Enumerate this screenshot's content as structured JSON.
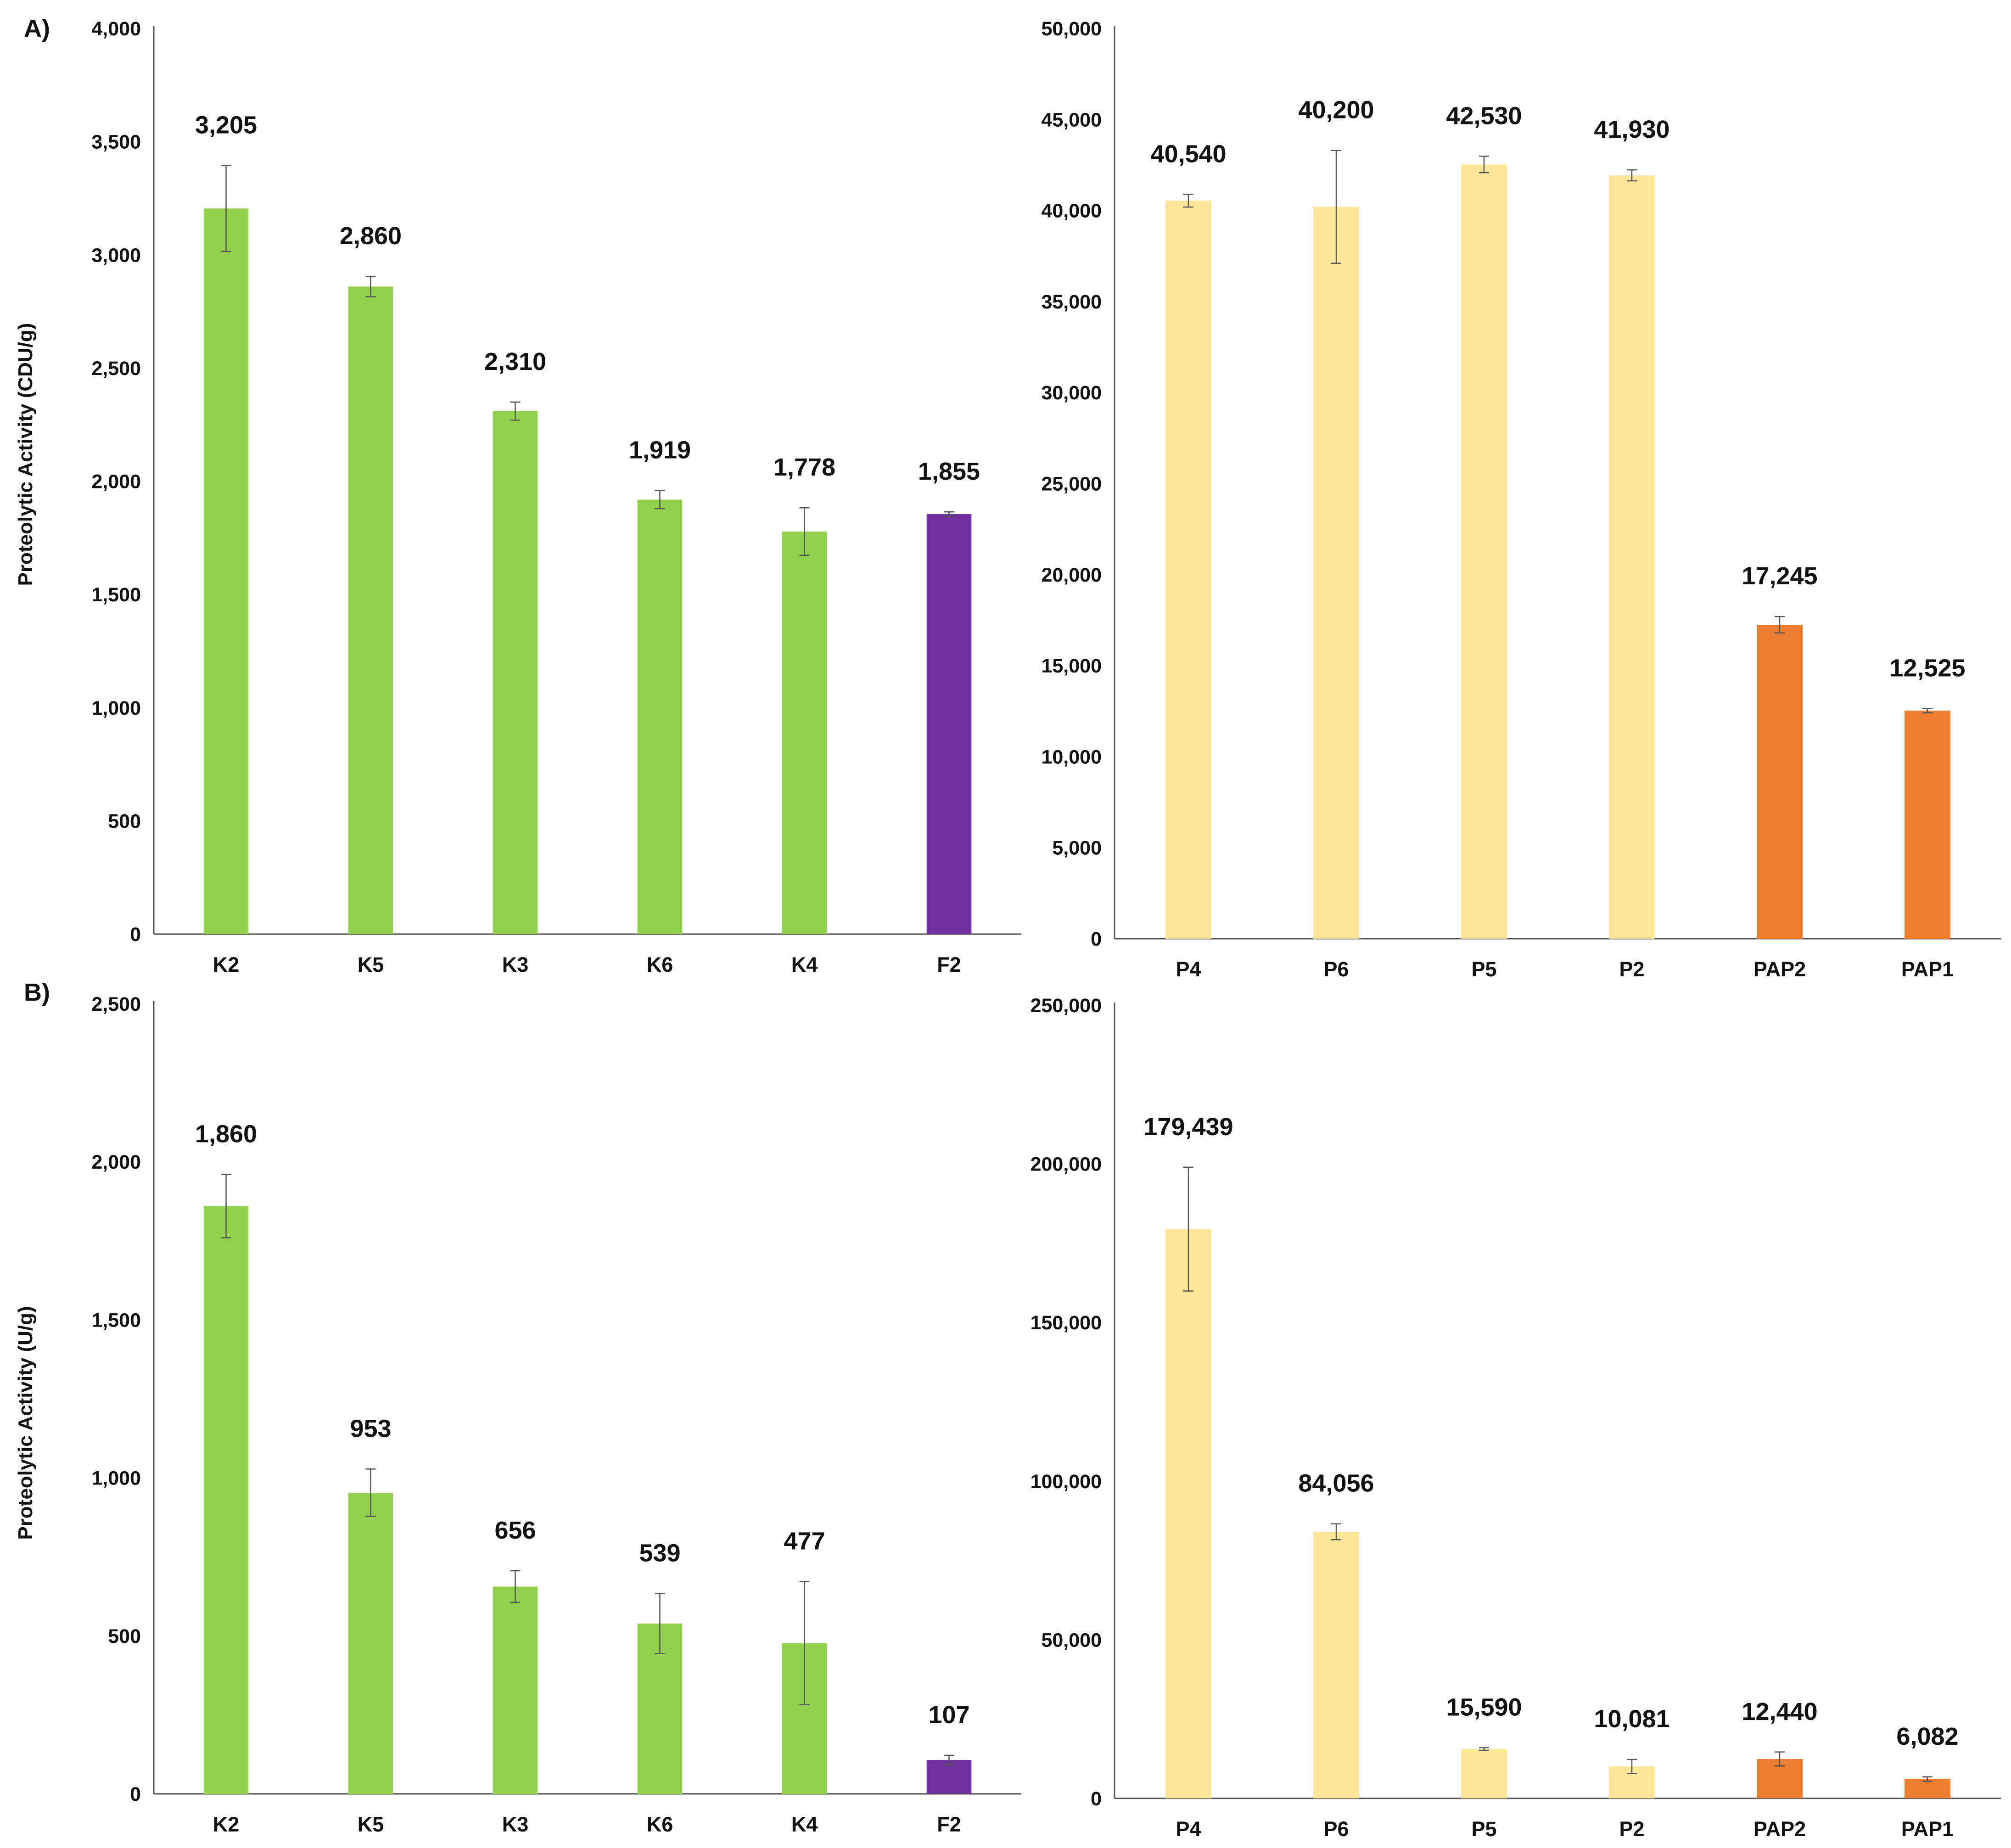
{
  "panels": [
    {
      "letter": "A)",
      "y_axis_title": "Proteolytic Activity (CDU/g)"
    },
    {
      "letter": "B)",
      "y_axis_title": "Proteolytic Activity (U/g)"
    }
  ],
  "chart_data": [
    {
      "type": "bar",
      "panel": "A",
      "position": "top-left",
      "ylabel": "Proteolytic Activity (CDU/g)",
      "ylim": [
        0,
        4000
      ],
      "yticks": [
        0,
        500,
        1000,
        1500,
        2000,
        2500,
        3000,
        3500,
        4000
      ],
      "ytick_labels": [
        "0",
        "500",
        "1,000",
        "1,500",
        "2,000",
        "2,500",
        "3,000",
        "3,500",
        "4,000"
      ],
      "categories": [
        "K2",
        "K5",
        "K3",
        "K6",
        "K4",
        "F2"
      ],
      "values": [
        3205,
        2860,
        2310,
        1919,
        1778,
        1855
      ],
      "value_labels": [
        "3,205",
        "2,860",
        "2,310",
        "1,919",
        "1,778",
        "1,855"
      ],
      "errors": [
        190,
        45,
        40,
        40,
        105,
        10
      ],
      "bar_colors": [
        "#92d050",
        "#92d050",
        "#92d050",
        "#92d050",
        "#92d050",
        "#7030a0"
      ]
    },
    {
      "type": "bar",
      "panel": "A",
      "position": "top-right",
      "ylabel": "",
      "ylim": [
        0,
        50000
      ],
      "yticks": [
        0,
        5000,
        10000,
        15000,
        20000,
        25000,
        30000,
        35000,
        40000,
        45000,
        50000
      ],
      "ytick_labels": [
        "0",
        "5,000",
        "10,000",
        "15,000",
        "20,000",
        "25,000",
        "30,000",
        "35,000",
        "40,000",
        "45,000",
        "50,000"
      ],
      "categories": [
        "P4",
        "P6",
        "P5",
        "P2",
        "PAP2",
        "PAP1"
      ],
      "values": [
        40540,
        40200,
        42530,
        41930,
        17245,
        12525
      ],
      "value_labels": [
        "40,540",
        "40,200",
        "42,530",
        "41,930",
        "17,245",
        "12,525"
      ],
      "errors": [
        350,
        3100,
        450,
        300,
        450,
        120
      ],
      "bar_colors": [
        "#ffe699",
        "#ffe699",
        "#ffe699",
        "#ffe699",
        "#ed7d31",
        "#ed7d31"
      ]
    },
    {
      "type": "bar",
      "panel": "B",
      "position": "bottom-left",
      "ylabel": "Proteolytic Activity (U/g)",
      "ylim": [
        0,
        2500
      ],
      "yticks": [
        0,
        500,
        1000,
        1500,
        2000,
        2500
      ],
      "ytick_labels": [
        "0",
        "500",
        "1,000",
        "1,500",
        "2,000",
        "2,500"
      ],
      "categories": [
        "K2",
        "K5",
        "K3",
        "K6",
        "K4",
        "F2"
      ],
      "values": [
        1860,
        953,
        656,
        539,
        477,
        107
      ],
      "value_labels": [
        "1,860",
        "953",
        "656",
        "539",
        "477",
        "107"
      ],
      "errors": [
        100,
        75,
        50,
        95,
        195,
        15
      ],
      "bar_colors": [
        "#92d050",
        "#92d050",
        "#92d050",
        "#92d050",
        "#92d050",
        "#7030a0"
      ]
    },
    {
      "type": "bar",
      "panel": "B",
      "position": "bottom-right",
      "ylabel": "",
      "ylim": [
        0,
        250000
      ],
      "yticks": [
        0,
        50000,
        100000,
        150000,
        200000,
        250000
      ],
      "ytick_labels": [
        "0",
        "50,000",
        "100,000",
        "150,000",
        "200,000",
        "250,000"
      ],
      "categories": [
        "P4",
        "P6",
        "P5",
        "P2",
        "PAP2",
        "PAP1"
      ],
      "values": [
        179439,
        84056,
        15590,
        10081,
        12440,
        6082
      ],
      "value_labels": [
        "179,439",
        "84,056",
        "15,590",
        "10,081",
        "12,440",
        "6,082"
      ],
      "errors": [
        19500,
        2500,
        400,
        2200,
        2200,
        700
      ],
      "bar_colors": [
        "#ffe699",
        "#ffe699",
        "#ffe699",
        "#ffe699",
        "#ed7d31",
        "#ed7d31"
      ]
    }
  ]
}
